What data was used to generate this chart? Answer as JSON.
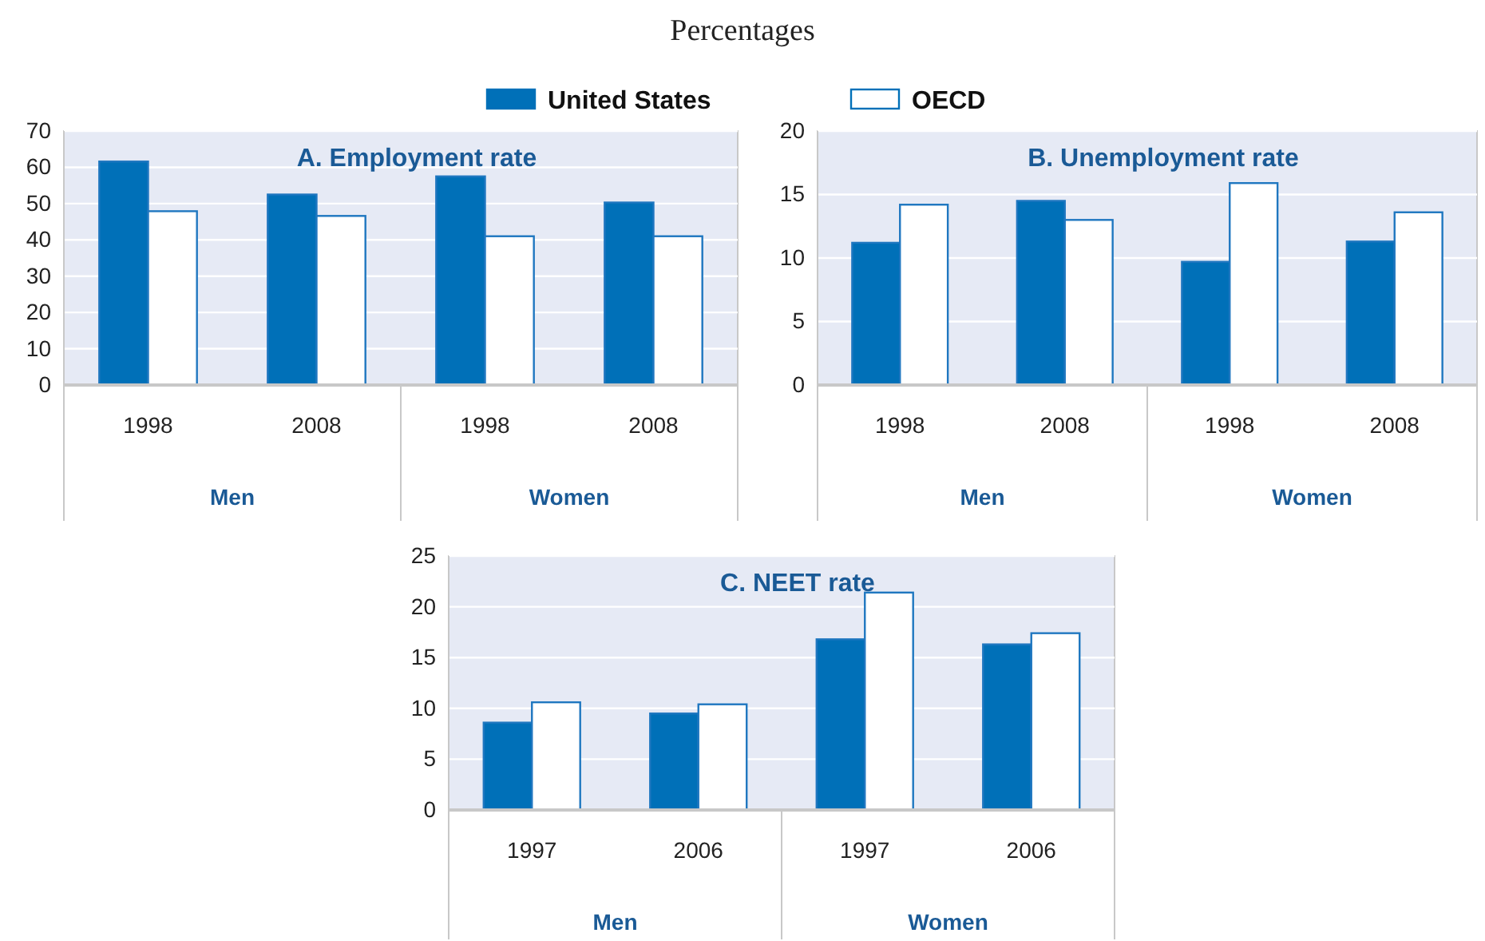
{
  "chart_data": [
    {
      "type": "bar",
      "subtitle": "Percentages",
      "title": "A. Employment rate",
      "categories": [
        "1998",
        "2008",
        "1998",
        "2008"
      ],
      "annotations": [
        "Men",
        "Women"
      ],
      "legend": "top",
      "grid": "y",
      "ylim": [
        0,
        70
      ],
      "yticks": [
        0,
        10,
        20,
        30,
        40,
        50,
        60,
        70
      ],
      "series": [
        {
          "name": "United States",
          "color": "#0070b8",
          "values": [
            61.6,
            52.5,
            57.5,
            50.3
          ]
        },
        {
          "name": "OECD",
          "color": "#ffffff",
          "values": [
            47.9,
            46.6,
            41,
            41
          ]
        }
      ]
    },
    {
      "type": "bar",
      "title": "B. Unemployment rate",
      "categories": [
        "1998",
        "2008",
        "1998",
        "2008"
      ],
      "annotations": [
        "Men",
        "Women"
      ],
      "grid": "y",
      "ylim": [
        0,
        20
      ],
      "yticks": [
        0,
        5,
        10,
        15,
        20
      ],
      "series": [
        {
          "color": "#0070b8",
          "values": [
            11.2,
            14.5,
            9.7,
            11.3
          ]
        },
        {
          "color": "#ffffff",
          "values": [
            14.2,
            13,
            15.9,
            13.6
          ]
        }
      ]
    },
    {
      "type": "bar",
      "title": "C. NEET rate",
      "categories": [
        "1997",
        "2006",
        "1997",
        "2006"
      ],
      "annotations": [
        "Men",
        "Women"
      ],
      "grid": "y",
      "ylim": [
        0,
        25
      ],
      "yticks": [
        0,
        5,
        10,
        15,
        20,
        25
      ],
      "series": [
        {
          "color": "#0070b8",
          "values": [
            8.6,
            9.5,
            16.8,
            16.3
          ]
        },
        {
          "color": "#ffffff",
          "values": [
            10.6,
            10.4,
            21.4,
            17.4
          ]
        }
      ]
    }
  ]
}
